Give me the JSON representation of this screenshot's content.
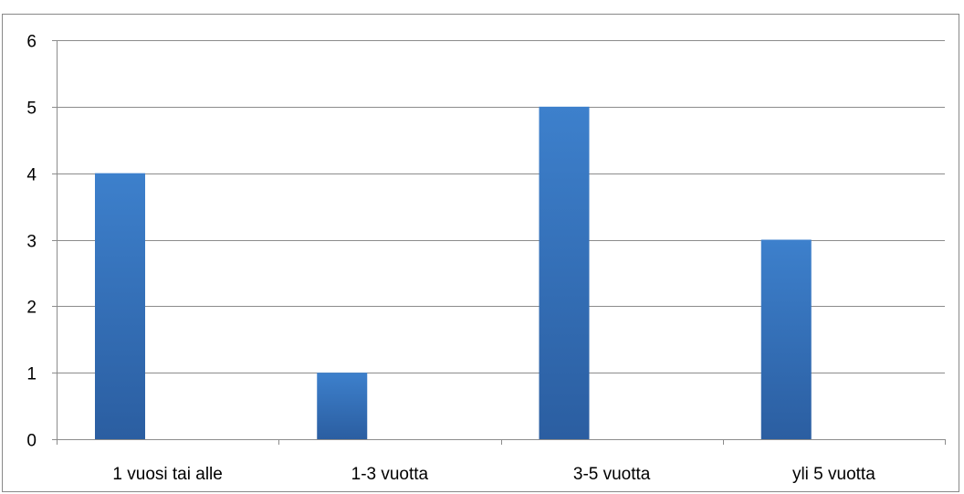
{
  "chart_data": {
    "type": "bar",
    "categories": [
      "1 vuosi tai alle",
      "1-3 vuotta",
      "3-5 vuotta",
      "yli 5 vuotta"
    ],
    "values": [
      4,
      1,
      5,
      3
    ],
    "title": "",
    "xlabel": "",
    "ylabel": "",
    "ylim": [
      0,
      6
    ],
    "yticks": [
      "0",
      "1",
      "2",
      "3",
      "4",
      "5",
      "6"
    ],
    "grid": true,
    "legend": "none",
    "colors": {
      "bar_top": "#3d80cc",
      "bar_bottom": "#2b5ea1",
      "grid": "#8c8c8c",
      "axis": "#8c8c8c"
    }
  }
}
